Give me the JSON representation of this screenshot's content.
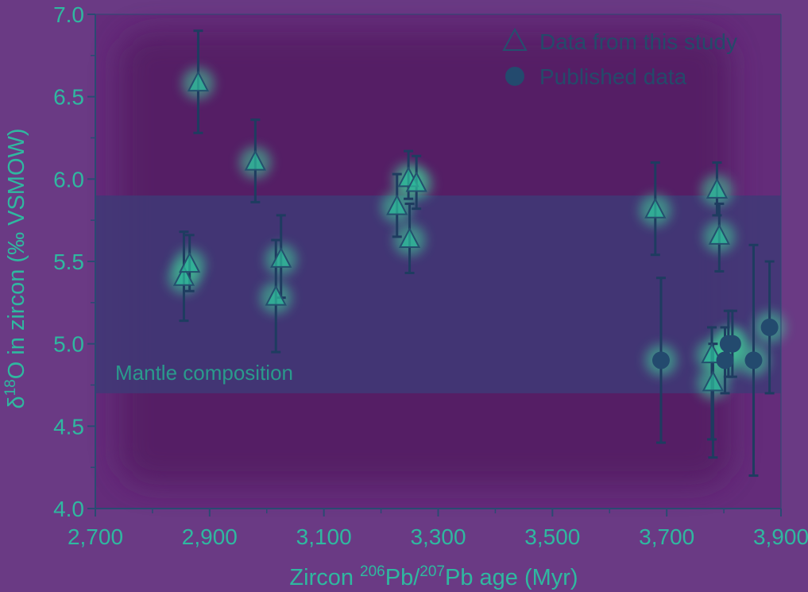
{
  "chart_data": {
    "type": "scatter",
    "xlabel_parts": [
      "Zircon ",
      "206",
      "Pb/",
      "207",
      "Pb age (Myr)"
    ],
    "ylabel_parts": [
      "δ",
      "18",
      "O in zircon (‰ VSMOW)"
    ],
    "xlim": [
      2700,
      3900
    ],
    "ylim": [
      4.0,
      7.0
    ],
    "x_ticks": [
      "2,700",
      "2,900",
      "3,100",
      "3,300",
      "3,500",
      "3,700",
      "3,900"
    ],
    "y_ticks": [
      "4.0",
      "4.5",
      "5.0",
      "5.5",
      "6.0",
      "6.5",
      "7.0"
    ],
    "band": {
      "label": "Mantle composition",
      "y_range": [
        4.7,
        5.9
      ]
    },
    "legend": {
      "placement": "top-right",
      "entries": [
        "Data from this study",
        "Published data"
      ]
    },
    "series": [
      {
        "name": "Data from this study",
        "marker": "triangle",
        "points": [
          {
            "x": 2880,
            "y": 6.58,
            "err": [
              6.28,
              6.9
            ]
          },
          {
            "x": 2855,
            "y": 5.4,
            "err": [
              5.14,
              5.68
            ]
          },
          {
            "x": 2865,
            "y": 5.48,
            "err": [
              5.32,
              5.66
            ]
          },
          {
            "x": 2980,
            "y": 6.1,
            "err": [
              5.86,
              6.36
            ]
          },
          {
            "x": 3016,
            "y": 5.28,
            "err": [
              4.95,
              5.63
            ]
          },
          {
            "x": 3025,
            "y": 5.51,
            "err": [
              5.28,
              5.78
            ]
          },
          {
            "x": 3228,
            "y": 5.83,
            "err": [
              5.65,
              6.03
            ]
          },
          {
            "x": 3248,
            "y": 6.0,
            "err": [
              5.88,
              6.17
            ]
          },
          {
            "x": 3250,
            "y": 5.63,
            "err": [
              5.43,
              5.85
            ]
          },
          {
            "x": 3262,
            "y": 5.97,
            "err": [
              5.82,
              6.14
            ]
          },
          {
            "x": 3680,
            "y": 5.81,
            "err": [
              5.54,
              6.1
            ]
          },
          {
            "x": 3779,
            "y": 4.93,
            "err": [
              4.42,
              5.1
            ]
          },
          {
            "x": 3781,
            "y": 4.76,
            "err": [
              4.31,
              5.0
            ]
          },
          {
            "x": 3788,
            "y": 5.93,
            "err": [
              5.78,
              6.1
            ]
          },
          {
            "x": 3792,
            "y": 5.65,
            "err": [
              5.44,
              5.85
            ]
          }
        ]
      },
      {
        "name": "Published data",
        "marker": "circle",
        "points": [
          {
            "x": 3690,
            "y": 4.9,
            "err": [
              4.4,
              5.4
            ]
          },
          {
            "x": 3802,
            "y": 4.9,
            "err": [
              4.7,
              5.1
            ]
          },
          {
            "x": 3808,
            "y": 5.0,
            "err": [
              4.8,
              5.2
            ]
          },
          {
            "x": 3815,
            "y": 5.0,
            "err": [
              4.8,
              5.2
            ]
          },
          {
            "x": 3852,
            "y": 4.9,
            "err": [
              4.2,
              5.6
            ]
          },
          {
            "x": 3880,
            "y": 5.1,
            "err": [
              4.7,
              5.5
            ]
          }
        ]
      }
    ]
  },
  "colors": {
    "page": "#6a3a84",
    "plot_bg": "#642c7a",
    "plot_inner": "#521a62",
    "band": "#3f3a77",
    "axis": "#2a4a72",
    "error_bar": "#1e3c60",
    "triangle_fill": "#2db79a",
    "triangle_stroke": "#24506e",
    "circle_fill": "#234a6e",
    "label": "#2fb8a0",
    "glow": "#3fd39a"
  }
}
